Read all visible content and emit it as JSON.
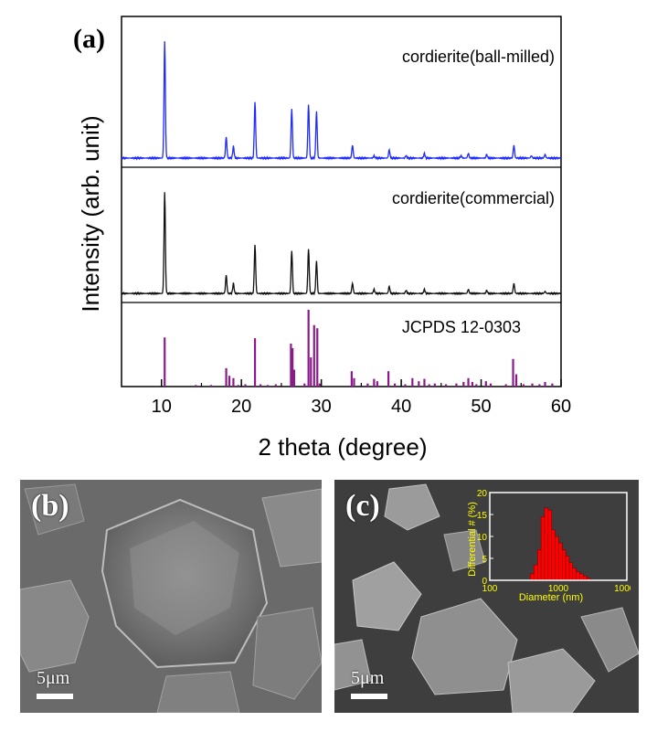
{
  "panel_labels": {
    "a": "(a)",
    "b": "(b)",
    "c": "(c)"
  },
  "chart_data": [
    {
      "type": "line",
      "xlabel": "2 theta (degree)",
      "ylabel": "Intensity (arb. unit)",
      "xlim": [
        5,
        60
      ],
      "xticks": [
        10,
        20,
        30,
        40,
        50,
        60
      ],
      "colors": {
        "ball_milled": "#1f2bff",
        "commercial": "#111111",
        "jcpds": "#8b1a8b"
      },
      "series": [
        {
          "name": "cordierite(ball-milled)",
          "color": "#1f2bff",
          "peaks": [
            [
              10.4,
              100
            ],
            [
              18.1,
              18
            ],
            [
              19.0,
              10
            ],
            [
              21.7,
              48
            ],
            [
              26.3,
              42
            ],
            [
              28.4,
              46
            ],
            [
              29.4,
              40
            ],
            [
              33.9,
              11
            ],
            [
              36.6,
              2
            ],
            [
              38.5,
              7
            ],
            [
              40.6,
              2
            ],
            [
              42.9,
              4
            ],
            [
              47.5,
              2
            ],
            [
              48.4,
              4
            ],
            [
              50.7,
              3
            ],
            [
              54.1,
              11
            ],
            [
              56.3,
              2
            ],
            [
              58.0,
              3
            ]
          ]
        },
        {
          "name": "cordierite(commercial)",
          "color": "#111111",
          "peaks": [
            [
              10.4,
              100
            ],
            [
              18.1,
              18
            ],
            [
              19.0,
              10
            ],
            [
              21.7,
              48
            ],
            [
              26.3,
              42
            ],
            [
              28.4,
              44
            ],
            [
              29.4,
              32
            ],
            [
              33.9,
              10
            ],
            [
              36.6,
              4
            ],
            [
              38.5,
              7
            ],
            [
              40.6,
              3
            ],
            [
              42.9,
              4
            ],
            [
              48.4,
              4
            ],
            [
              50.7,
              3
            ],
            [
              54.1,
              10
            ],
            [
              58.0,
              2
            ]
          ]
        },
        {
          "name": "JCPDS 12-0303",
          "type": "stick",
          "color": "#8b1a8b",
          "peaks": [
            [
              10.4,
              64
            ],
            [
              14.3,
              2
            ],
            [
              16.2,
              2
            ],
            [
              18.1,
              24
            ],
            [
              18.5,
              14
            ],
            [
              19.0,
              11
            ],
            [
              19.6,
              2
            ],
            [
              20.5,
              3
            ],
            [
              21.7,
              63
            ],
            [
              22.4,
              3
            ],
            [
              23.3,
              2
            ],
            [
              24.3,
              3
            ],
            [
              26.2,
              56
            ],
            [
              26.4,
              50
            ],
            [
              26.6,
              22
            ],
            [
              27.9,
              4
            ],
            [
              28.4,
              100
            ],
            [
              28.7,
              38
            ],
            [
              29.1,
              80
            ],
            [
              29.5,
              76
            ],
            [
              29.8,
              4
            ],
            [
              33.8,
              20
            ],
            [
              34.1,
              11
            ],
            [
              35.8,
              4
            ],
            [
              36.6,
              10
            ],
            [
              37.0,
              7
            ],
            [
              38.4,
              20
            ],
            [
              39.2,
              4
            ],
            [
              40.5,
              3
            ],
            [
              41.4,
              11
            ],
            [
              42.2,
              7
            ],
            [
              42.9,
              10
            ],
            [
              43.5,
              3
            ],
            [
              44.2,
              4
            ],
            [
              45.6,
              3
            ],
            [
              46.9,
              4
            ],
            [
              47.8,
              6
            ],
            [
              48.4,
              11
            ],
            [
              48.9,
              6
            ],
            [
              49.4,
              3
            ],
            [
              50.6,
              7
            ],
            [
              51.2,
              4
            ],
            [
              53.1,
              3
            ],
            [
              54.0,
              36
            ],
            [
              54.4,
              16
            ],
            [
              55.3,
              3
            ],
            [
              56.4,
              4
            ],
            [
              57.3,
              3
            ],
            [
              58.0,
              6
            ],
            [
              58.9,
              4
            ]
          ]
        }
      ]
    },
    {
      "type": "bar",
      "xlabel": "Diameter (nm)",
      "ylabel": "Differential # (%)",
      "xscale": "log",
      "xlim": [
        100,
        10000
      ],
      "xticks": [
        100,
        1000,
        10000
      ],
      "ylim": [
        0,
        20
      ],
      "yticks": [
        0,
        5,
        10,
        15,
        20
      ],
      "label_color": "#ffff00",
      "bar_color": "#ff0000",
      "bars": [
        [
          390,
          1.5
        ],
        [
          440,
          3.5
        ],
        [
          500,
          7.0
        ],
        [
          560,
          14.5
        ],
        [
          630,
          16.5
        ],
        [
          710,
          16.0
        ],
        [
          800,
          11.5
        ],
        [
          900,
          10.0
        ],
        [
          1010,
          8.5
        ],
        [
          1140,
          7.0
        ],
        [
          1280,
          5.5
        ],
        [
          1440,
          4.0
        ],
        [
          1620,
          2.8
        ],
        [
          1820,
          2.0
        ],
        [
          2050,
          1.5
        ],
        [
          2310,
          1.0
        ],
        [
          2600,
          0.5
        ]
      ]
    }
  ],
  "sem_images": {
    "b": {
      "scale_label": "5μm"
    },
    "c": {
      "scale_label": "5μm"
    }
  }
}
